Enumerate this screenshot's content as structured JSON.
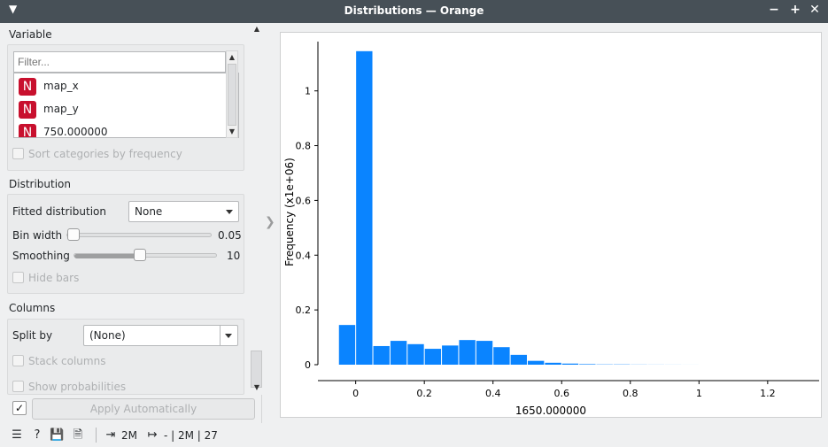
{
  "window": {
    "title": "Distributions — Orange",
    "menu_icon": "chevron-down-icon",
    "buttons": [
      "−",
      "+",
      "✕"
    ]
  },
  "variable": {
    "section_title": "Variable",
    "filter_placeholder": "Filter...",
    "items": [
      {
        "badge": "N",
        "label": "map_x"
      },
      {
        "badge": "N",
        "label": "map_y"
      },
      {
        "badge": "N",
        "label": "750.000000"
      }
    ],
    "sort_label": "Sort categories by frequency"
  },
  "distribution": {
    "section_title": "Distribution",
    "fitted_label": "Fitted distribution",
    "fitted_value": "None",
    "bin_width_label": "Bin width",
    "bin_width_value": "0.05",
    "bin_width_level": 0.0,
    "smoothing_label": "Smoothing",
    "smoothing_value": "10",
    "smoothing_level": 0.45,
    "hide_bars_label": "Hide bars"
  },
  "columns": {
    "section_title": "Columns",
    "split_label": "Split by",
    "split_value": "(None)",
    "stack_label": "Stack columns",
    "prob_label": "Show probabilities"
  },
  "apply": {
    "checked": "✓",
    "label": "Apply Automatically"
  },
  "status": {
    "in_count": "2M",
    "out_text": "- | 2M | 27"
  },
  "colors": {
    "bar": "#0a84ff",
    "badge": "#c8102e",
    "titlebar": "#475057"
  },
  "chart_data": {
    "type": "bar",
    "xlabel": "1650.000000",
    "ylabel": "Frequency (x1e+06)",
    "xlim": [
      -0.11,
      1.35
    ],
    "ylim": [
      0,
      1.18
    ],
    "bin_width": 0.05,
    "x_ticks": [
      0,
      0.2,
      0.4,
      0.6,
      0.8,
      1,
      1.2
    ],
    "y_ticks": [
      0,
      0.2,
      0.4,
      0.6,
      0.8,
      1
    ],
    "x_tick_labels": [
      "0",
      "0.2",
      "0.4",
      "0.6",
      "0.8",
      "1",
      "1.2"
    ],
    "y_tick_labels": [
      "0",
      "0.2",
      "0.4",
      "0.6",
      "0.8",
      "1"
    ],
    "bins": [
      -0.05,
      0.0,
      0.05,
      0.1,
      0.15,
      0.2,
      0.25,
      0.3,
      0.35,
      0.4,
      0.45,
      0.5,
      0.55,
      0.6,
      0.65,
      0.7,
      0.75,
      0.8,
      0.85,
      0.9,
      0.95
    ],
    "values": [
      0.145,
      1.145,
      0.068,
      0.087,
      0.075,
      0.058,
      0.07,
      0.09,
      0.087,
      0.064,
      0.036,
      0.014,
      0.007,
      0.004,
      0.002,
      0.001,
      0.001,
      0.0005,
      0.0003,
      0.0002,
      0.0001
    ]
  }
}
